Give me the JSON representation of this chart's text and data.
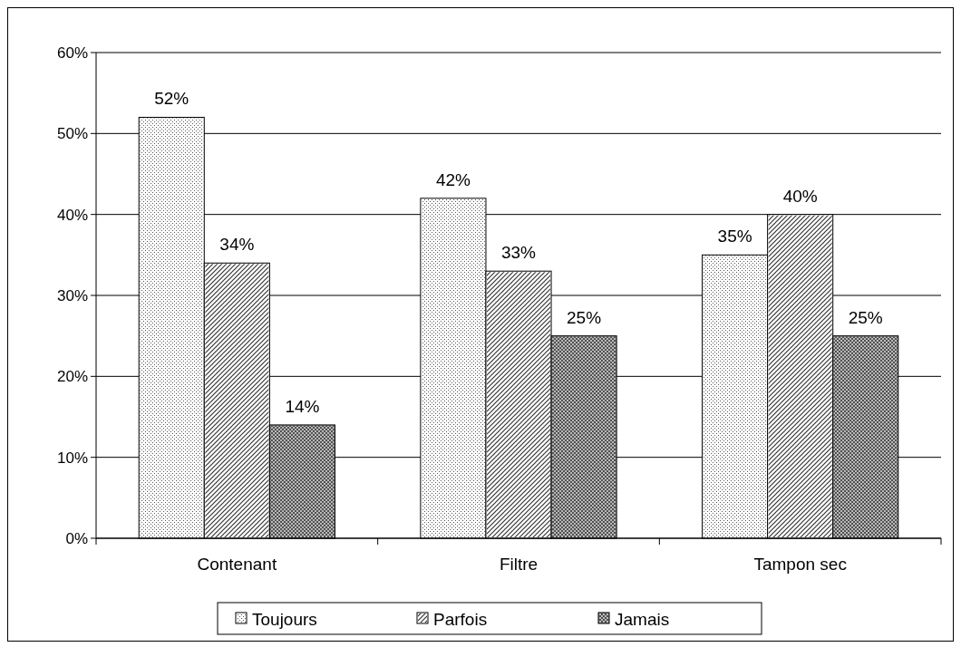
{
  "chart_data": {
    "type": "bar",
    "categories": [
      "Contenant",
      "Filtre",
      "Tampon sec"
    ],
    "series": [
      {
        "name": "Toujours",
        "color": "#ffffff",
        "values": [
          52,
          42,
          35
        ],
        "value_labels": [
          "52%",
          "42%",
          "35%"
        ]
      },
      {
        "name": "Parfois",
        "color": "#ffffff",
        "values": [
          34,
          33,
          40
        ],
        "value_labels": [
          "34%",
          "33%",
          "40%"
        ]
      },
      {
        "name": "Jamais",
        "color": "#808080",
        "values": [
          14,
          25,
          25
        ],
        "value_labels": [
          "14%",
          "25%",
          "25%"
        ]
      }
    ],
    "ylim": [
      0,
      60
    ],
    "yticks": [
      {
        "value": 0,
        "label": "0%"
      },
      {
        "value": 10,
        "label": "10%"
      },
      {
        "value": 20,
        "label": "20%"
      },
      {
        "value": 30,
        "label": "30%"
      },
      {
        "value": 40,
        "label": "40%"
      },
      {
        "value": 50,
        "label": "50%"
      },
      {
        "value": 60,
        "label": "60%"
      }
    ],
    "grid": "y",
    "legend": "bottom"
  }
}
